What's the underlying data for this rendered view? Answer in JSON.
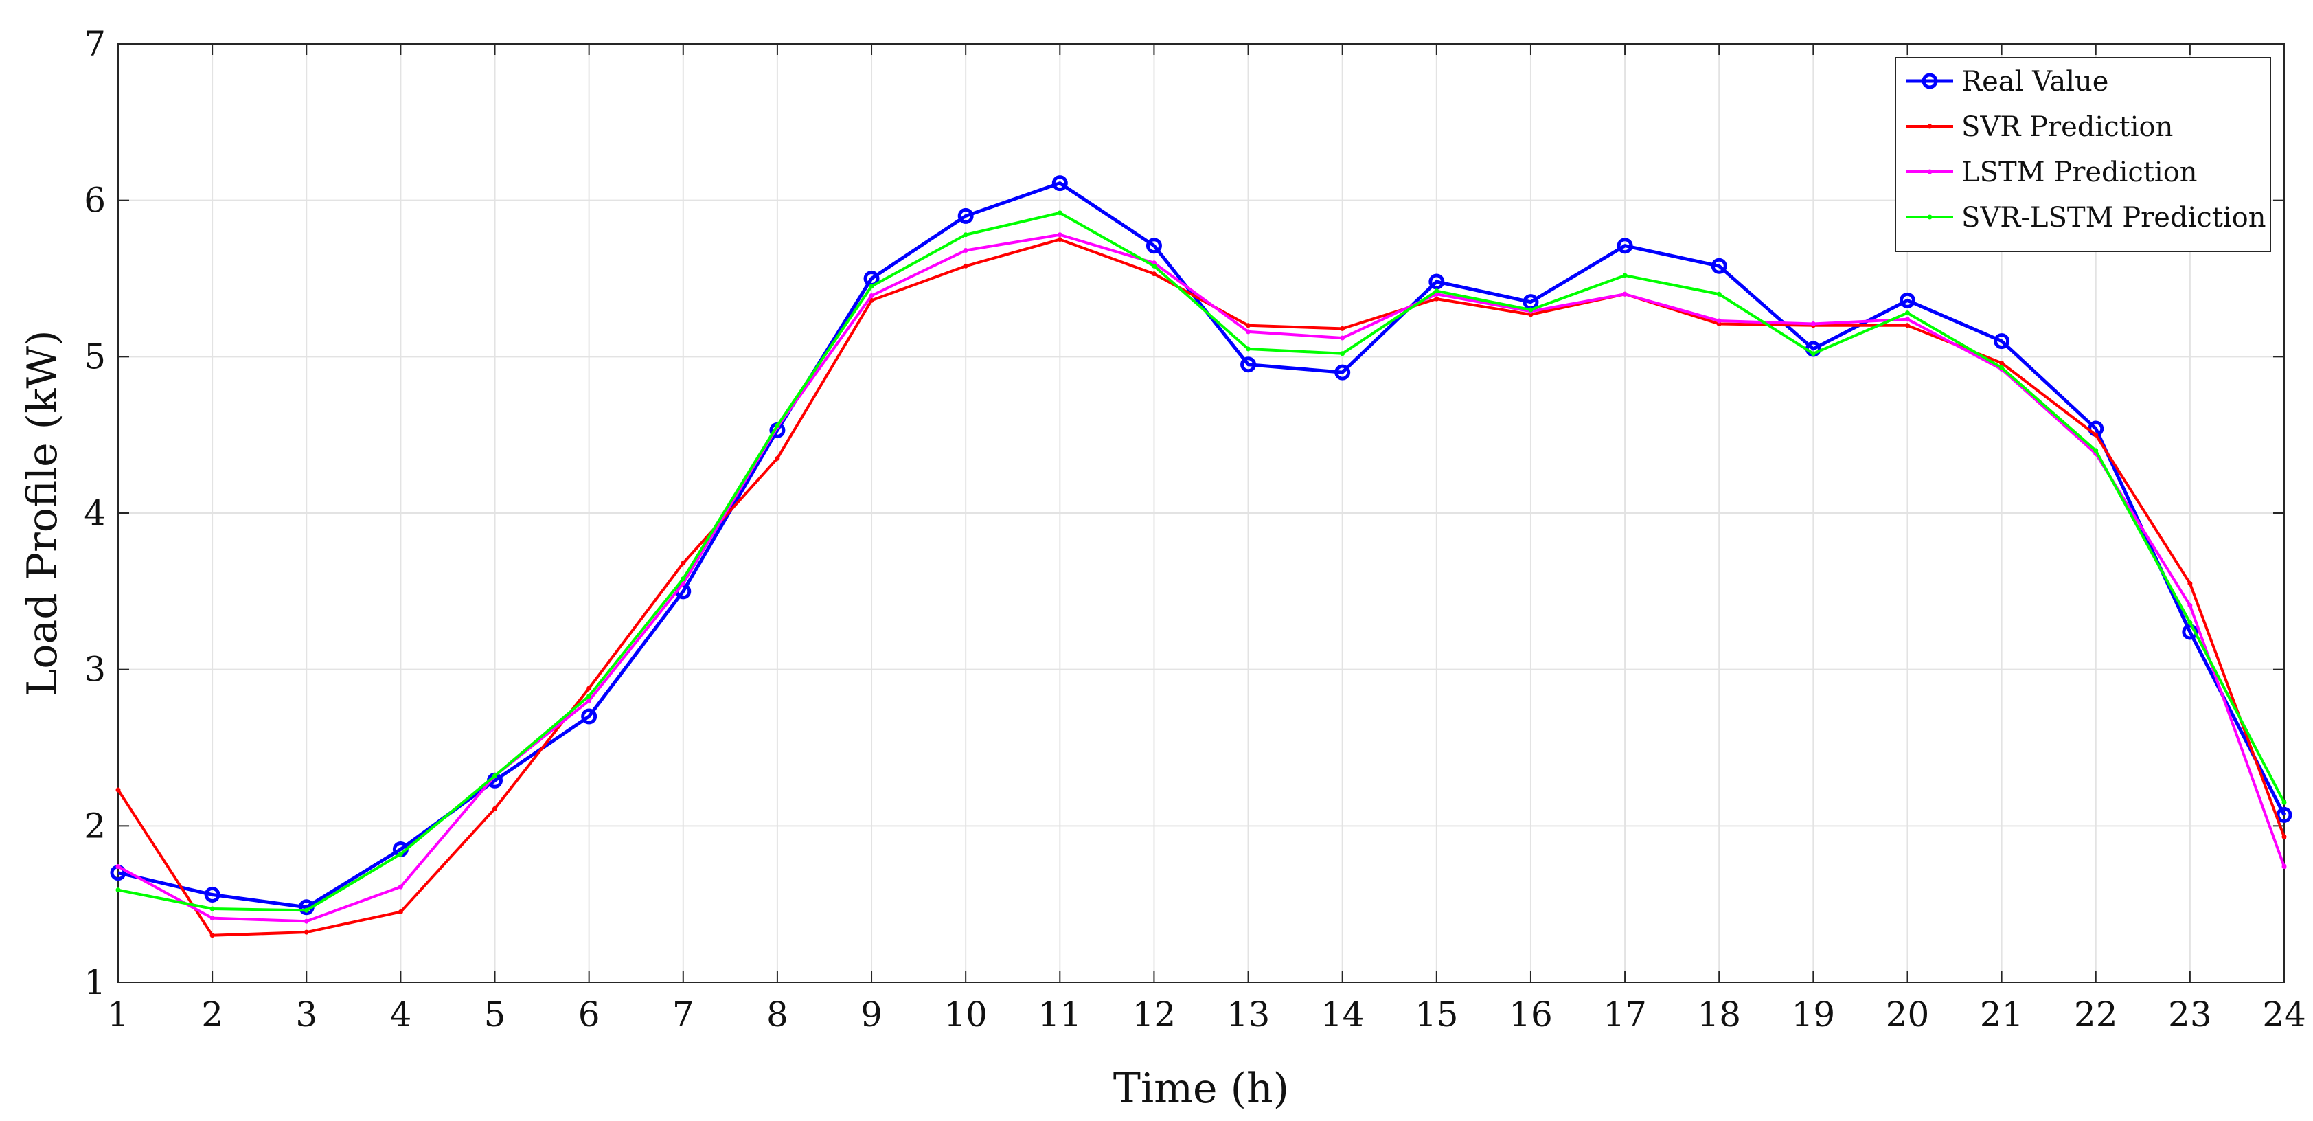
{
  "chart_data": {
    "type": "line",
    "title": "",
    "xlabel": "Time (h)",
    "ylabel": "Load Profile (kW)",
    "xlim": [
      1,
      24
    ],
    "ylim": [
      1,
      7
    ],
    "xticks": [
      1,
      2,
      3,
      4,
      5,
      6,
      7,
      8,
      9,
      10,
      11,
      12,
      13,
      14,
      15,
      16,
      17,
      18,
      19,
      20,
      21,
      22,
      23,
      24
    ],
    "yticks": [
      1,
      2,
      3,
      4,
      5,
      6,
      7
    ],
    "grid": true,
    "legend_position": "top-right",
    "x": [
      1,
      2,
      3,
      4,
      5,
      6,
      7,
      8,
      9,
      10,
      11,
      12,
      13,
      14,
      15,
      16,
      17,
      18,
      19,
      20,
      21,
      22,
      23,
      24
    ],
    "series": [
      {
        "name": "Real Value",
        "color": "#0000ff",
        "marker": "circle",
        "values": [
          1.7,
          1.56,
          1.48,
          1.85,
          2.29,
          2.7,
          3.5,
          4.53,
          5.5,
          5.9,
          6.11,
          5.71,
          4.95,
          4.9,
          5.48,
          5.35,
          5.71,
          5.58,
          5.05,
          5.36,
          5.1,
          4.54,
          3.24,
          2.07
        ]
      },
      {
        "name": "SVR Prediction",
        "color": "#ff0000",
        "marker": "dot",
        "values": [
          2.23,
          1.3,
          1.32,
          1.45,
          2.11,
          2.88,
          3.68,
          4.35,
          5.36,
          5.58,
          5.75,
          5.53,
          5.2,
          5.18,
          5.37,
          5.27,
          5.4,
          5.21,
          5.2,
          5.2,
          4.96,
          4.5,
          3.55,
          1.93
        ]
      },
      {
        "name": "LSTM Prediction",
        "color": "#ff00ff",
        "marker": "dot",
        "values": [
          1.74,
          1.41,
          1.39,
          1.61,
          2.32,
          2.8,
          3.55,
          4.55,
          5.39,
          5.68,
          5.78,
          5.6,
          5.16,
          5.12,
          5.4,
          5.29,
          5.4,
          5.23,
          5.21,
          5.24,
          4.92,
          4.38,
          3.41,
          1.74
        ]
      },
      {
        "name": "SVR-LSTM Prediction",
        "color": "#00ff00",
        "marker": "dot",
        "values": [
          1.59,
          1.47,
          1.46,
          1.82,
          2.32,
          2.83,
          3.58,
          4.56,
          5.45,
          5.78,
          5.92,
          5.58,
          5.05,
          5.02,
          5.42,
          5.3,
          5.52,
          5.4,
          5.02,
          5.28,
          4.93,
          4.4,
          3.3,
          2.15
        ]
      }
    ]
  }
}
